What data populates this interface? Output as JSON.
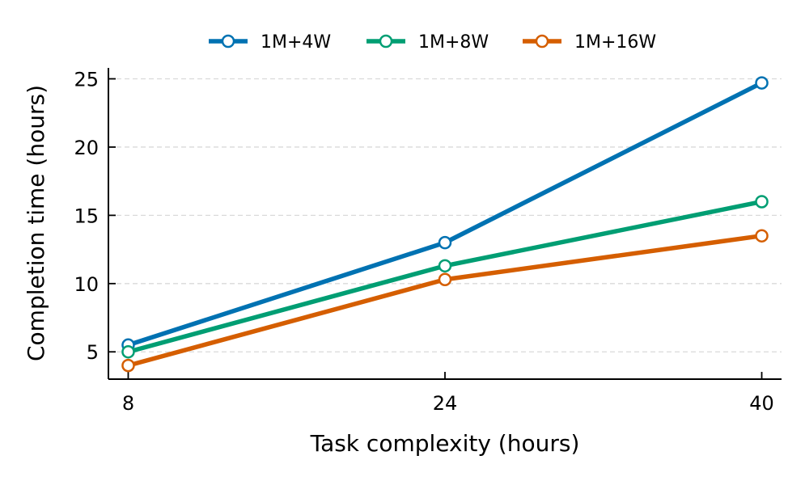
{
  "chart_data": {
    "type": "line",
    "title": "",
    "xlabel": "Task complexity (hours)",
    "ylabel": "Completion time (hours)",
    "x": [
      8,
      24,
      40
    ],
    "x_tick_labels": [
      "8",
      "24",
      "40"
    ],
    "y_ticks": [
      5,
      10,
      15,
      20,
      25
    ],
    "y_tick_labels": [
      "5",
      "10",
      "15",
      "20",
      "25"
    ],
    "xlim": [
      7.0,
      41.0
    ],
    "ylim": [
      3.0,
      25.8
    ],
    "grid": "horizontal dashed",
    "legend_position": "top-center",
    "series": [
      {
        "name": "1M+4W",
        "color": "#0072B2",
        "values": [
          5.5,
          13.0,
          24.7
        ]
      },
      {
        "name": "1M+8W",
        "color": "#009E73",
        "values": [
          5.0,
          11.3,
          16.0
        ]
      },
      {
        "name": "1M+16W",
        "color": "#D55E00",
        "values": [
          4.0,
          10.3,
          13.5
        ]
      }
    ]
  }
}
